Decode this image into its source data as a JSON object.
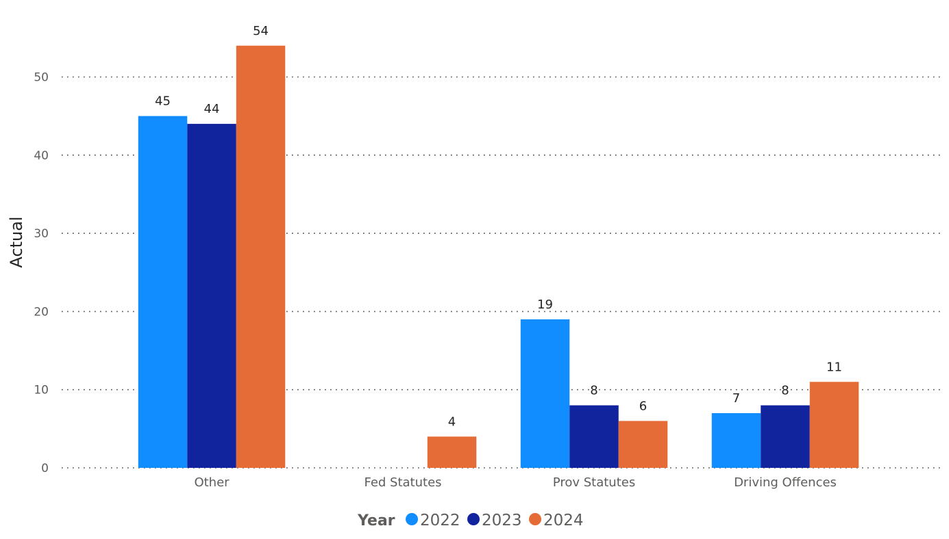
{
  "chart_data": {
    "type": "bar",
    "categories": [
      "Other",
      "Fed Statutes",
      "Prov Statutes",
      "Driving Offences"
    ],
    "series": [
      {
        "name": "2022",
        "color": "#118DFF",
        "values": [
          45,
          null,
          19,
          7
        ]
      },
      {
        "name": "2023",
        "color": "#12239E",
        "values": [
          44,
          null,
          8,
          8
        ]
      },
      {
        "name": "2024",
        "color": "#E66C37",
        "values": [
          54,
          4,
          6,
          11
        ]
      }
    ],
    "ylabel": "Actual",
    "xlabel": "",
    "ylim": [
      0,
      57
    ],
    "yticks": [
      0,
      10,
      20,
      30,
      40,
      50
    ],
    "grid": true,
    "legend": {
      "title": "Year",
      "placement": "bottom-center"
    }
  }
}
